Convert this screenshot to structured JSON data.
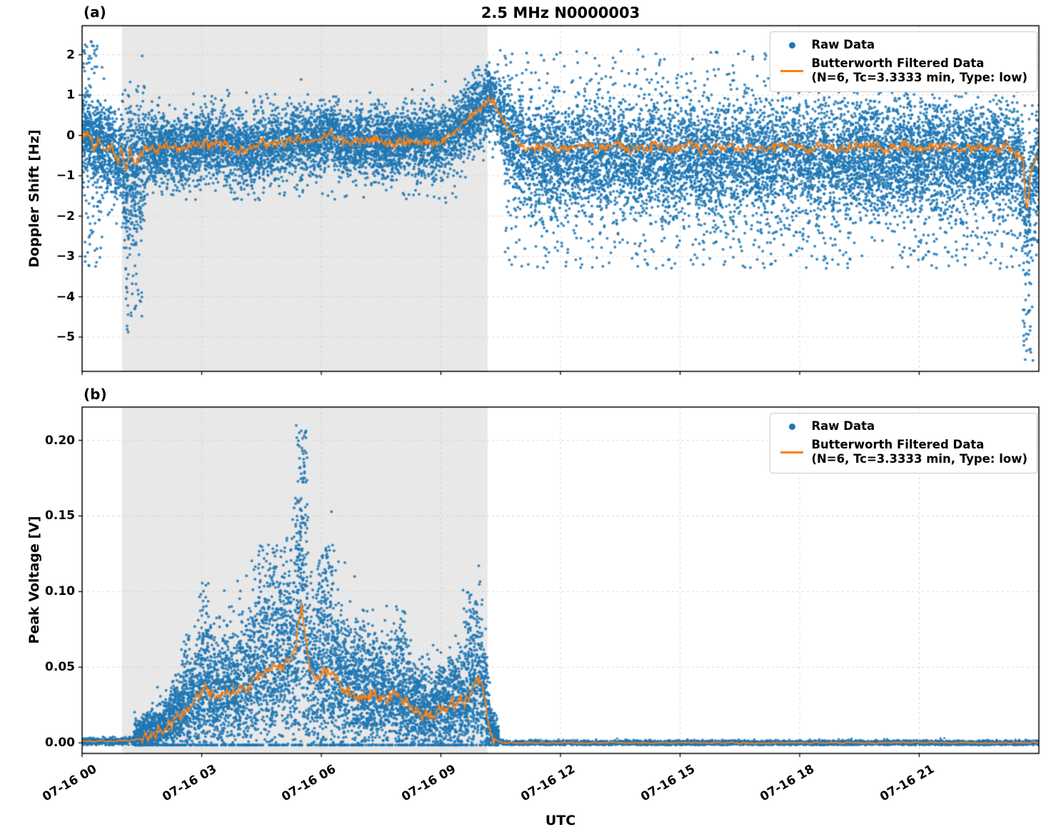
{
  "figure": {
    "title": "2.5 MHz N0000003",
    "xlabel": "UTC",
    "background": "#ffffff"
  },
  "chart_data": [
    {
      "type": "scatter",
      "panel_label": "(a)",
      "ylabel": "Doppler Shift [Hz]",
      "x_unit": "hours since 07-16 00:00 UTC",
      "xlim": [
        0,
        24
      ],
      "ylim": [
        -5.85,
        2.72
      ],
      "grid": true,
      "xticks": [
        {
          "v": 0,
          "label": "07-16 00"
        },
        {
          "v": 3,
          "label": "07-16 03"
        },
        {
          "v": 6,
          "label": "07-16 06"
        },
        {
          "v": 9,
          "label": "07-16 09"
        },
        {
          "v": 12,
          "label": "07-16 12"
        },
        {
          "v": 15,
          "label": "07-16 15"
        },
        {
          "v": 18,
          "label": "07-16 18"
        },
        {
          "v": 21,
          "label": "07-16 21"
        }
      ],
      "show_x_labels": false,
      "yticks": [
        {
          "v": 2,
          "label": "2"
        },
        {
          "v": 1,
          "label": "1"
        },
        {
          "v": 0,
          "label": "0"
        },
        {
          "v": -1,
          "label": "−1"
        },
        {
          "v": -2,
          "label": "−2"
        },
        {
          "v": -3,
          "label": "−3"
        },
        {
          "v": -4,
          "label": "−4"
        },
        {
          "v": -5,
          "label": "−5"
        }
      ],
      "shaded_region": {
        "t0": 1.0,
        "t1": 10.17,
        "color": "#e8e8e8"
      },
      "colors": {
        "raw": "#1f77b4",
        "filtered": "#ff7f0e",
        "grid": "#cccccc"
      },
      "legend": {
        "position": "upper right",
        "items": [
          {
            "marker": "dot",
            "label": "Raw Data"
          },
          {
            "marker": "line",
            "label": "Butterworth Filtered Data",
            "sublabel": "(N=6, Tc=3.3333 min, Type: low)"
          }
        ]
      },
      "filtered_line": {
        "jitter": 0.12,
        "points": [
          [
            0.0,
            -0.05
          ],
          [
            0.15,
            0.05
          ],
          [
            0.3,
            -0.25
          ],
          [
            0.45,
            -0.15
          ],
          [
            0.6,
            -0.45
          ],
          [
            0.75,
            -0.25
          ],
          [
            0.9,
            -0.7
          ],
          [
            1.0,
            -0.35
          ],
          [
            1.1,
            -0.85
          ],
          [
            1.2,
            -0.45
          ],
          [
            1.35,
            -0.75
          ],
          [
            1.5,
            -0.4
          ],
          [
            1.7,
            -0.3
          ],
          [
            1.9,
            -0.35
          ],
          [
            2.1,
            -0.25
          ],
          [
            2.3,
            -0.3
          ],
          [
            2.5,
            -0.35
          ],
          [
            2.7,
            -0.25
          ],
          [
            2.9,
            -0.2
          ],
          [
            3.1,
            -0.15
          ],
          [
            3.3,
            -0.2
          ],
          [
            3.5,
            -0.15
          ],
          [
            3.7,
            -0.25
          ],
          [
            3.9,
            -0.3
          ],
          [
            4.1,
            -0.4
          ],
          [
            4.3,
            -0.3
          ],
          [
            4.5,
            -0.2
          ],
          [
            4.7,
            -0.25
          ],
          [
            4.9,
            -0.15
          ],
          [
            5.1,
            -0.2
          ],
          [
            5.3,
            -0.1
          ],
          [
            5.5,
            -0.15
          ],
          [
            5.7,
            -0.2
          ],
          [
            5.9,
            -0.1
          ],
          [
            6.1,
            0.0
          ],
          [
            6.25,
            0.1
          ],
          [
            6.4,
            -0.1
          ],
          [
            6.6,
            -0.2
          ],
          [
            6.8,
            -0.15
          ],
          [
            7.0,
            -0.1
          ],
          [
            7.2,
            -0.15
          ],
          [
            7.4,
            -0.1
          ],
          [
            7.6,
            -0.2
          ],
          [
            7.8,
            -0.25
          ],
          [
            8.0,
            -0.15
          ],
          [
            8.2,
            -0.1
          ],
          [
            8.4,
            -0.15
          ],
          [
            8.6,
            -0.1
          ],
          [
            8.8,
            -0.15
          ],
          [
            9.0,
            -0.1
          ],
          [
            9.2,
            -0.05
          ],
          [
            9.4,
            0.1
          ],
          [
            9.6,
            0.3
          ],
          [
            9.8,
            0.5
          ],
          [
            10.0,
            0.7
          ],
          [
            10.2,
            0.88
          ],
          [
            10.35,
            0.8
          ],
          [
            10.5,
            0.5
          ],
          [
            10.7,
            0.2
          ],
          [
            10.9,
            -0.1
          ],
          [
            11.1,
            -0.3
          ],
          [
            11.4,
            -0.35
          ],
          [
            11.7,
            -0.25
          ],
          [
            12.0,
            -0.4
          ],
          [
            12.3,
            -0.3
          ],
          [
            12.6,
            -0.25
          ],
          [
            12.9,
            -0.35
          ],
          [
            13.2,
            -0.3
          ],
          [
            13.5,
            -0.2
          ],
          [
            13.8,
            -0.35
          ],
          [
            14.1,
            -0.3
          ],
          [
            14.4,
            -0.25
          ],
          [
            14.7,
            -0.35
          ],
          [
            15.0,
            -0.3
          ],
          [
            15.3,
            -0.25
          ],
          [
            15.6,
            -0.3
          ],
          [
            15.9,
            -0.35
          ],
          [
            16.2,
            -0.25
          ],
          [
            16.5,
            -0.3
          ],
          [
            16.8,
            -0.25
          ],
          [
            17.1,
            -0.35
          ],
          [
            17.4,
            -0.3
          ],
          [
            17.7,
            -0.25
          ],
          [
            18.0,
            -0.3
          ],
          [
            18.3,
            -0.35
          ],
          [
            18.6,
            -0.25
          ],
          [
            18.9,
            -0.3
          ],
          [
            19.2,
            -0.35
          ],
          [
            19.5,
            -0.25
          ],
          [
            19.8,
            -0.3
          ],
          [
            20.1,
            -0.35
          ],
          [
            20.4,
            -0.3
          ],
          [
            20.7,
            -0.25
          ],
          [
            21.0,
            -0.35
          ],
          [
            21.3,
            -0.3
          ],
          [
            21.6,
            -0.25
          ],
          [
            21.9,
            -0.3
          ],
          [
            22.2,
            -0.35
          ],
          [
            22.5,
            -0.3
          ],
          [
            22.8,
            -0.35
          ],
          [
            23.1,
            -0.3
          ],
          [
            23.4,
            -0.4
          ],
          [
            23.6,
            -0.6
          ],
          [
            23.7,
            -1.9
          ],
          [
            23.8,
            -1.0
          ],
          [
            23.9,
            -0.6
          ],
          [
            24.0,
            -0.5
          ]
        ]
      },
      "scatter": {
        "seed": 1337,
        "dot_radius": 2.0,
        "segments": [
          {
            "t0": 0.0,
            "t1": 1.0,
            "n": 800,
            "offset": 0.0,
            "spread_abs": 0.55,
            "spread_rel": 0
          },
          {
            "t0": 1.0,
            "t1": 1.6,
            "n": 450,
            "offset": -0.2,
            "spread_abs": 0.85,
            "spread_rel": 0
          },
          {
            "t0": 1.6,
            "t1": 9.35,
            "n": 4800,
            "offset": 0.0,
            "spread_abs": 0.42,
            "spread_rel": 0
          },
          {
            "t0": 9.35,
            "t1": 10.6,
            "n": 800,
            "offset": 0.0,
            "spread_abs": 0.45,
            "spread_rel": 0
          },
          {
            "t0": 10.6,
            "t1": 24.0,
            "n": 8500,
            "offset": -0.25,
            "spread_abs": 0.72,
            "spread_rel": 0
          }
        ],
        "outliers": [
          {
            "t0": 0.05,
            "t1": 0.5,
            "y0": -3.3,
            "y1": -1.5,
            "n": 35
          },
          {
            "t0": 0.0,
            "t1": 0.4,
            "y0": 1.5,
            "y1": 2.35,
            "n": 25
          },
          {
            "t0": 1.05,
            "t1": 1.5,
            "y0": -4.9,
            "y1": -2.0,
            "n": 45
          },
          {
            "t0": 1.6,
            "t1": 9.3,
            "y0": -1.6,
            "y1": -0.9,
            "n": 120
          },
          {
            "t0": 10.6,
            "t1": 24.0,
            "y0": -3.3,
            "y1": -1.9,
            "n": 320
          },
          {
            "t0": 10.6,
            "t1": 24.0,
            "y0": 1.1,
            "y1": 2.1,
            "n": 200
          },
          {
            "t0": 23.6,
            "t1": 23.85,
            "y0": -5.6,
            "y1": -2.5,
            "n": 45
          }
        ]
      }
    },
    {
      "type": "scatter",
      "panel_label": "(b)",
      "ylabel": "Peak Voltage [V]",
      "x_unit": "hours since 07-16 00:00 UTC",
      "xlim": [
        0,
        24
      ],
      "ylim": [
        -0.007,
        0.222
      ],
      "grid": true,
      "xticks": [
        {
          "v": 0,
          "label": "07-16 00"
        },
        {
          "v": 3,
          "label": "07-16 03"
        },
        {
          "v": 6,
          "label": "07-16 06"
        },
        {
          "v": 9,
          "label": "07-16 09"
        },
        {
          "v": 12,
          "label": "07-16 12"
        },
        {
          "v": 15,
          "label": "07-16 15"
        },
        {
          "v": 18,
          "label": "07-16 18"
        },
        {
          "v": 21,
          "label": "07-16 21"
        }
      ],
      "show_x_labels": true,
      "yticks": [
        {
          "v": 0.2,
          "label": "0.20"
        },
        {
          "v": 0.15,
          "label": "0.15"
        },
        {
          "v": 0.1,
          "label": "0.10"
        },
        {
          "v": 0.05,
          "label": "0.05"
        },
        {
          "v": 0.0,
          "label": "0.00"
        }
      ],
      "shaded_region": {
        "t0": 1.0,
        "t1": 10.17,
        "color": "#e8e8e8"
      },
      "colors": {
        "raw": "#1f77b4",
        "filtered": "#ff7f0e",
        "grid": "#cccccc"
      },
      "legend": {
        "position": "upper right",
        "items": [
          {
            "marker": "dot",
            "label": "Raw Data"
          },
          {
            "marker": "line",
            "label": "Butterworth Filtered Data",
            "sublabel": "(N=6, Tc=3.3333 min, Type: low)"
          }
        ]
      },
      "filtered_line": {
        "jitter": 0.004,
        "jitter_gate": 0.003,
        "points": [
          [
            0.0,
            0.001
          ],
          [
            0.8,
            0.001
          ],
          [
            1.2,
            0.0015
          ],
          [
            1.5,
            0.003
          ],
          [
            1.8,
            0.006
          ],
          [
            2.1,
            0.01
          ],
          [
            2.4,
            0.016
          ],
          [
            2.7,
            0.024
          ],
          [
            2.95,
            0.03
          ],
          [
            3.1,
            0.035
          ],
          [
            3.25,
            0.033
          ],
          [
            3.4,
            0.03
          ],
          [
            3.55,
            0.034
          ],
          [
            3.7,
            0.032
          ],
          [
            3.85,
            0.035
          ],
          [
            4.0,
            0.038
          ],
          [
            4.15,
            0.036
          ],
          [
            4.3,
            0.042
          ],
          [
            4.45,
            0.044
          ],
          [
            4.6,
            0.046
          ],
          [
            4.75,
            0.05
          ],
          [
            4.9,
            0.048
          ],
          [
            5.05,
            0.052
          ],
          [
            5.2,
            0.055
          ],
          [
            5.35,
            0.06
          ],
          [
            5.5,
            0.093
          ],
          [
            5.6,
            0.07
          ],
          [
            5.7,
            0.05
          ],
          [
            5.85,
            0.042
          ],
          [
            6.0,
            0.047
          ],
          [
            6.15,
            0.05
          ],
          [
            6.3,
            0.046
          ],
          [
            6.45,
            0.04
          ],
          [
            6.6,
            0.037
          ],
          [
            6.75,
            0.034
          ],
          [
            6.9,
            0.03
          ],
          [
            7.05,
            0.028
          ],
          [
            7.2,
            0.03
          ],
          [
            7.35,
            0.033
          ],
          [
            7.5,
            0.031
          ],
          [
            7.65,
            0.029
          ],
          [
            7.8,
            0.032
          ],
          [
            7.95,
            0.03
          ],
          [
            8.1,
            0.027
          ],
          [
            8.25,
            0.024
          ],
          [
            8.4,
            0.022
          ],
          [
            8.55,
            0.02
          ],
          [
            8.7,
            0.018
          ],
          [
            8.85,
            0.02
          ],
          [
            9.0,
            0.023
          ],
          [
            9.15,
            0.021
          ],
          [
            9.3,
            0.025
          ],
          [
            9.45,
            0.028
          ],
          [
            9.6,
            0.026
          ],
          [
            9.75,
            0.032
          ],
          [
            9.9,
            0.042
          ],
          [
            10.0,
            0.038
          ],
          [
            10.1,
            0.03
          ],
          [
            10.2,
            0.012
          ],
          [
            10.3,
            0.004
          ],
          [
            10.45,
            0.001
          ],
          [
            10.6,
            0.0
          ],
          [
            11.0,
            0.0
          ],
          [
            24.0,
            0.0
          ]
        ]
      },
      "scatter": {
        "seed": 4242,
        "dot_radius": 2.0,
        "clamp_min": -0.0015,
        "segments": [
          {
            "t0": 0.0,
            "t1": 1.3,
            "n": 600,
            "offset": 0.0,
            "spread_abs": 0.0012,
            "spread_rel": 0,
            "r": 1.6
          },
          {
            "t0": 1.3,
            "t1": 10.45,
            "n": 6500,
            "offset": 0.002,
            "spread_abs": 0.004,
            "spread_rel": 0.55
          },
          {
            "t0": 10.45,
            "t1": 24.0,
            "n": 5500,
            "offset": 0.0,
            "spread_abs": 0.0008,
            "spread_rel": 0,
            "r": 1.6
          }
        ],
        "outliers": [
          {
            "t0": 2.5,
            "t1": 2.7,
            "y0": 0.05,
            "y1": 0.075,
            "n": 14
          },
          {
            "t0": 2.9,
            "t1": 3.2,
            "y0": 0.07,
            "y1": 0.106,
            "n": 25
          },
          {
            "t0": 4.4,
            "t1": 5.1,
            "y0": 0.08,
            "y1": 0.131,
            "n": 60
          },
          {
            "t0": 5.35,
            "t1": 5.65,
            "y0": 0.1,
            "y1": 0.21,
            "n": 70
          },
          {
            "t0": 5.9,
            "t1": 6.3,
            "y0": 0.08,
            "y1": 0.132,
            "n": 55
          },
          {
            "t0": 6.9,
            "t1": 7.1,
            "y0": 0.06,
            "y1": 0.082,
            "n": 18
          },
          {
            "t0": 7.9,
            "t1": 8.15,
            "y0": 0.06,
            "y1": 0.088,
            "n": 20
          },
          {
            "t0": 9.55,
            "t1": 9.95,
            "y0": 0.06,
            "y1": 0.101,
            "n": 35
          }
        ]
      }
    }
  ]
}
